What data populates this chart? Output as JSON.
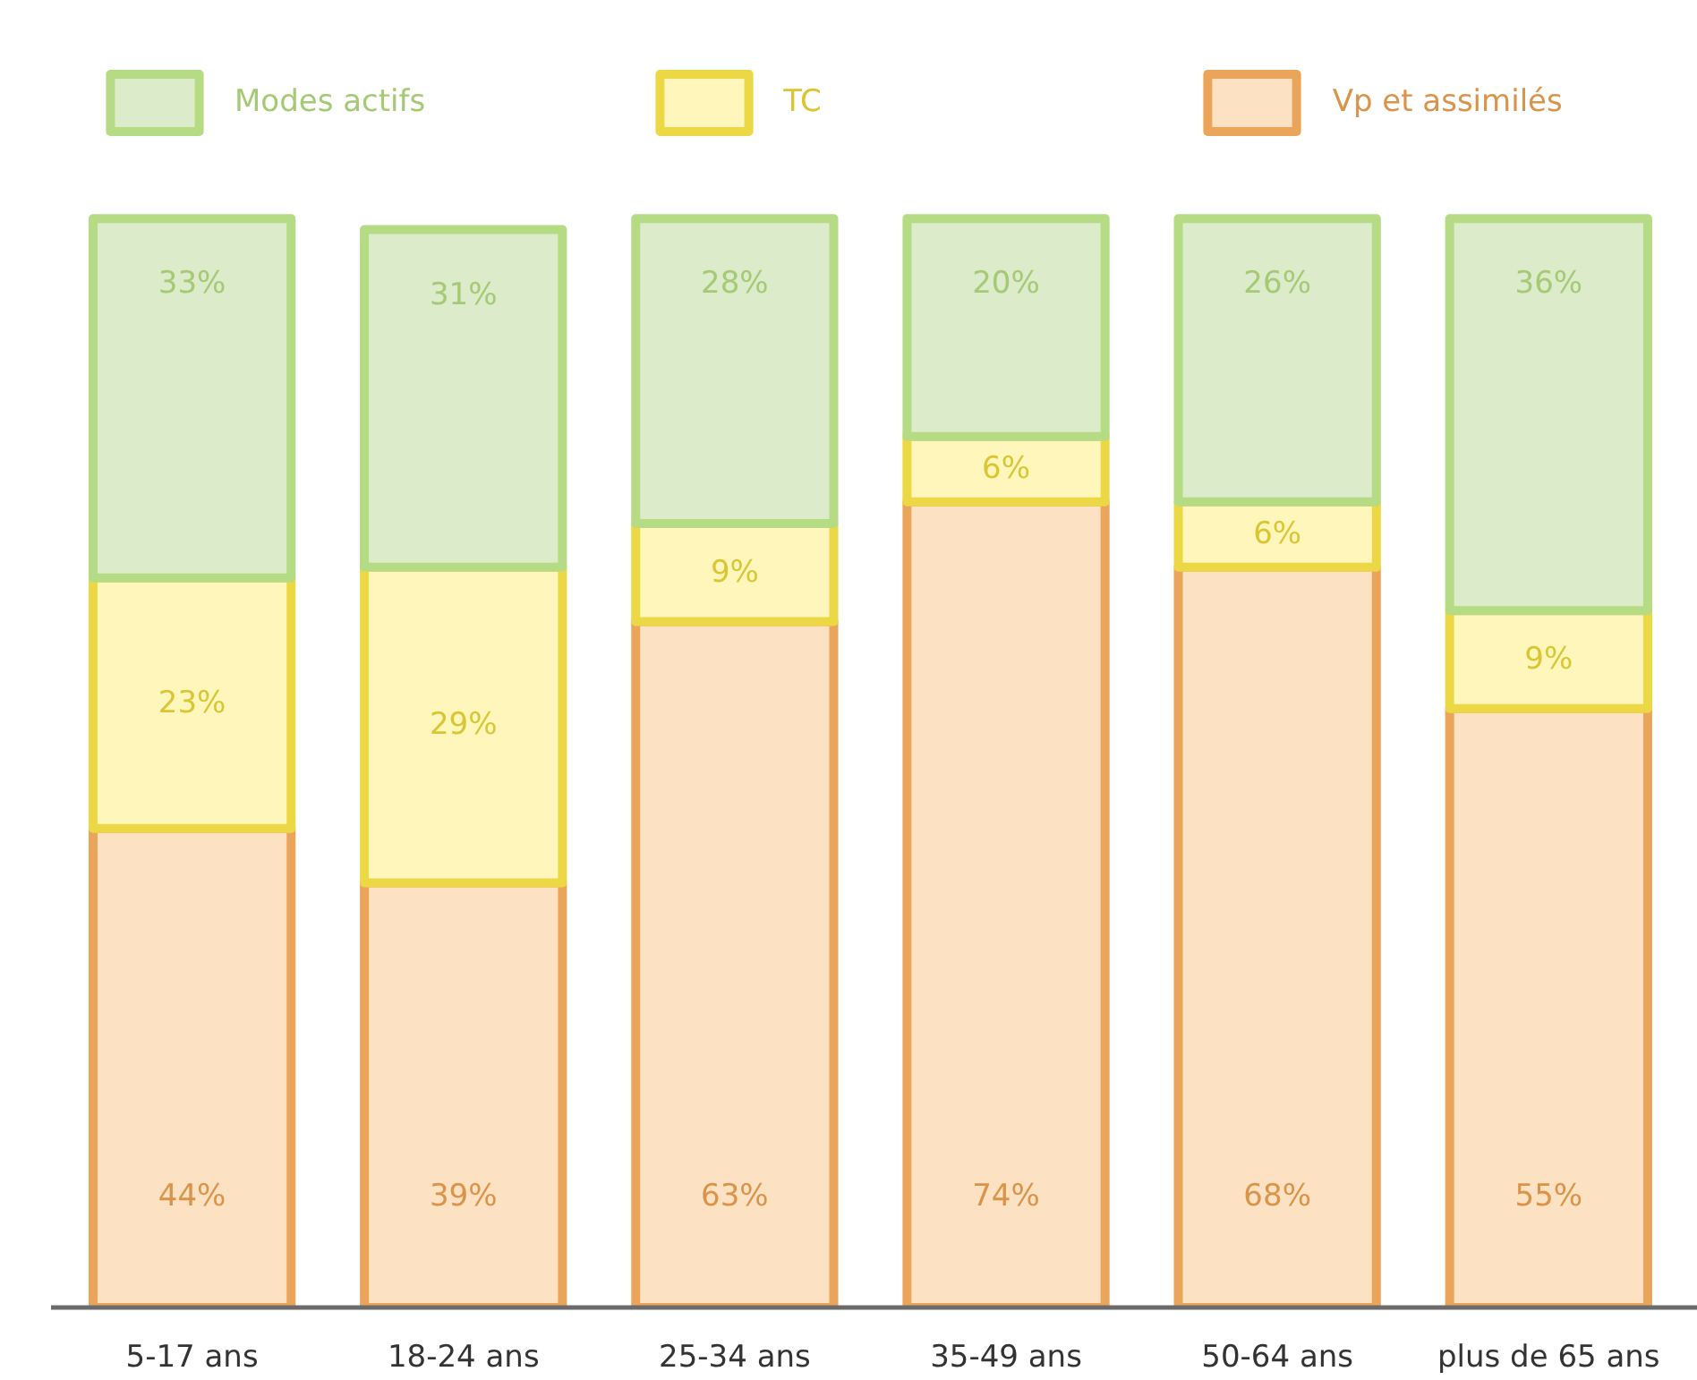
{
  "chart_data": {
    "type": "bar",
    "stacked": true,
    "legend": "top",
    "tick_labels": "x",
    "categories": [
      "5-17 ans",
      "18-24 ans",
      "25-34 ans",
      "35-49 ans",
      "50-64 ans",
      "plus de 65 ans"
    ],
    "series": [
      {
        "name": "Vp et assimilés",
        "color": "#fde1c3",
        "values": [
          44,
          39,
          63,
          74,
          68,
          55
        ],
        "value_labels": [
          "44%",
          "39%",
          "63%",
          "74%",
          "68%",
          "55%"
        ]
      },
      {
        "name": "TC",
        "color": "#fef6bb",
        "values": [
          23,
          29,
          9,
          6,
          6,
          9
        ],
        "value_labels": [
          "23%",
          "29%",
          "9%",
          "6%",
          "6%",
          "9%"
        ]
      },
      {
        "name": "Modes actifs",
        "color": "#dcebc9",
        "values": [
          33,
          31,
          28,
          20,
          26,
          36
        ],
        "value_labels": [
          "33%",
          "31%",
          "28%",
          "20%",
          "26%",
          "36%"
        ]
      }
    ]
  }
}
